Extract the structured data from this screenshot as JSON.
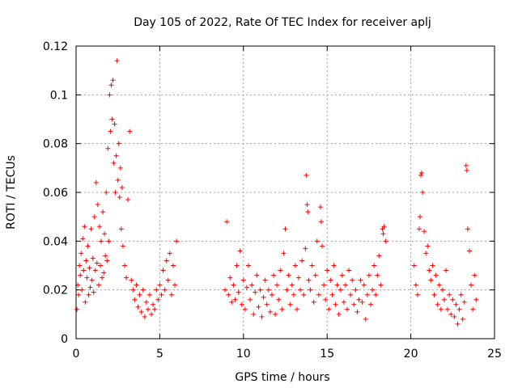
{
  "chart_data": {
    "type": "scatter",
    "title": "Day 105 of 2022, Rate Of TEC Index for receiver aplj",
    "xlabel": "GPS time / hours",
    "ylabel": "ROTI / TECUs",
    "xlim": [
      0,
      25
    ],
    "ylim": [
      0,
      0.12
    ],
    "x_ticks": [
      0,
      5,
      10,
      15,
      20,
      25
    ],
    "y_ticks": [
      0,
      0.02,
      0.04,
      0.06,
      0.08,
      0.1,
      0.12
    ],
    "x_tick_labels": [
      "0",
      "5",
      "10",
      "15",
      "20",
      "25"
    ],
    "y_tick_labels": [
      "0",
      "0.02",
      "0.04",
      "0.06",
      "0.08",
      "0.1",
      "0.12"
    ],
    "grid": true,
    "marker": "+",
    "color": "#ff0000",
    "series": [
      {
        "name": "ROTI",
        "points": [
          [
            0.05,
            0.012
          ],
          [
            0.1,
            0.022
          ],
          [
            0.15,
            0.018
          ],
          [
            0.2,
            0.03
          ],
          [
            0.25,
            0.026
          ],
          [
            0.3,
            0.035
          ],
          [
            0.35,
            0.02
          ],
          [
            0.4,
            0.041
          ],
          [
            0.45,
            0.028
          ],
          [
            0.5,
            0.046
          ],
          [
            0.55,
            0.015
          ],
          [
            0.6,
            0.032
          ],
          [
            0.65,
            0.025
          ],
          [
            0.7,
            0.038
          ],
          [
            0.75,
            0.018
          ],
          [
            0.8,
            0.029
          ],
          [
            0.85,
            0.021
          ],
          [
            0.9,
            0.045
          ],
          [
            0.95,
            0.024
          ],
          [
            1.0,
            0.033
          ],
          [
            1.05,
            0.019
          ],
          [
            1.1,
            0.05
          ],
          [
            1.15,
            0.028
          ],
          [
            1.2,
            0.064
          ],
          [
            1.25,
            0.031
          ],
          [
            1.3,
            0.055
          ],
          [
            1.35,
            0.022
          ],
          [
            1.4,
            0.046
          ],
          [
            1.45,
            0.03
          ],
          [
            1.5,
            0.04
          ],
          [
            1.55,
            0.025
          ],
          [
            1.6,
            0.052
          ],
          [
            1.65,
            0.027
          ],
          [
            1.7,
            0.043
          ],
          [
            1.75,
            0.034
          ],
          [
            1.8,
            0.06
          ],
          [
            1.85,
            0.032
          ],
          [
            1.9,
            0.078
          ],
          [
            1.95,
            0.04
          ],
          [
            2.0,
            0.1
          ],
          [
            2.05,
            0.085
          ],
          [
            2.1,
            0.104
          ],
          [
            2.15,
            0.09
          ],
          [
            2.2,
            0.106
          ],
          [
            2.25,
            0.072
          ],
          [
            2.3,
            0.088
          ],
          [
            2.35,
            0.06
          ],
          [
            2.4,
            0.075
          ],
          [
            2.45,
            0.114
          ],
          [
            2.5,
            0.065
          ],
          [
            2.55,
            0.08
          ],
          [
            2.6,
            0.058
          ],
          [
            2.65,
            0.07
          ],
          [
            2.7,
            0.045
          ],
          [
            2.75,
            0.062
          ],
          [
            2.8,
            0.038
          ],
          [
            2.9,
            0.03
          ],
          [
            3.0,
            0.025
          ],
          [
            3.1,
            0.057
          ],
          [
            3.2,
            0.085
          ],
          [
            3.3,
            0.024
          ],
          [
            3.4,
            0.02
          ],
          [
            3.5,
            0.016
          ],
          [
            3.6,
            0.022
          ],
          [
            3.7,
            0.013
          ],
          [
            3.8,
            0.018
          ],
          [
            3.9,
            0.011
          ],
          [
            4.0,
            0.02
          ],
          [
            4.1,
            0.009
          ],
          [
            4.2,
            0.015
          ],
          [
            4.3,
            0.012
          ],
          [
            4.4,
            0.018
          ],
          [
            4.5,
            0.01
          ],
          [
            4.6,
            0.014
          ],
          [
            4.7,
            0.012
          ],
          [
            4.8,
            0.02
          ],
          [
            4.9,
            0.016
          ],
          [
            5.0,
            0.022
          ],
          [
            5.1,
            0.018
          ],
          [
            5.2,
            0.028
          ],
          [
            5.3,
            0.02
          ],
          [
            5.4,
            0.032
          ],
          [
            5.5,
            0.024
          ],
          [
            5.6,
            0.035
          ],
          [
            5.7,
            0.018
          ],
          [
            5.8,
            0.03
          ],
          [
            5.9,
            0.022
          ],
          [
            6.0,
            0.04
          ],
          [
            8.9,
            0.02
          ],
          [
            9.0,
            0.048
          ],
          [
            9.1,
            0.018
          ],
          [
            9.2,
            0.025
          ],
          [
            9.3,
            0.015
          ],
          [
            9.4,
            0.022
          ],
          [
            9.5,
            0.016
          ],
          [
            9.6,
            0.03
          ],
          [
            9.7,
            0.019
          ],
          [
            9.8,
            0.036
          ],
          [
            9.9,
            0.014
          ],
          [
            10.0,
            0.024
          ],
          [
            10.1,
            0.012
          ],
          [
            10.2,
            0.021
          ],
          [
            10.3,
            0.03
          ],
          [
            10.4,
            0.016
          ],
          [
            10.5,
            0.022
          ],
          [
            10.6,
            0.01
          ],
          [
            10.7,
            0.019
          ],
          [
            10.8,
            0.026
          ],
          [
            10.9,
            0.013
          ],
          [
            11.0,
            0.02
          ],
          [
            11.1,
            0.009
          ],
          [
            11.2,
            0.017
          ],
          [
            11.3,
            0.024
          ],
          [
            11.4,
            0.014
          ],
          [
            11.5,
            0.02
          ],
          [
            11.6,
            0.011
          ],
          [
            11.7,
            0.018
          ],
          [
            11.8,
            0.026
          ],
          [
            11.9,
            0.01
          ],
          [
            12.0,
            0.022
          ],
          [
            12.1,
            0.016
          ],
          [
            12.2,
            0.028
          ],
          [
            12.3,
            0.012
          ],
          [
            12.4,
            0.035
          ],
          [
            12.5,
            0.045
          ],
          [
            12.6,
            0.02
          ],
          [
            12.7,
            0.026
          ],
          [
            12.8,
            0.014
          ],
          [
            12.9,
            0.022
          ],
          [
            13.0,
            0.018
          ],
          [
            13.1,
            0.03
          ],
          [
            13.2,
            0.012
          ],
          [
            13.3,
            0.025
          ],
          [
            13.4,
            0.02
          ],
          [
            13.5,
            0.032
          ],
          [
            13.6,
            0.018
          ],
          [
            13.7,
            0.037
          ],
          [
            13.75,
            0.067
          ],
          [
            13.8,
            0.055
          ],
          [
            13.85,
            0.052
          ],
          [
            13.9,
            0.024
          ],
          [
            14.0,
            0.02
          ],
          [
            14.1,
            0.03
          ],
          [
            14.2,
            0.015
          ],
          [
            14.3,
            0.026
          ],
          [
            14.4,
            0.04
          ],
          [
            14.5,
            0.018
          ],
          [
            14.6,
            0.054
          ],
          [
            14.65,
            0.048
          ],
          [
            14.7,
            0.038
          ],
          [
            14.8,
            0.022
          ],
          [
            14.9,
            0.016
          ],
          [
            15.0,
            0.028
          ],
          [
            15.1,
            0.012
          ],
          [
            15.2,
            0.024
          ],
          [
            15.3,
            0.018
          ],
          [
            15.4,
            0.03
          ],
          [
            15.5,
            0.014
          ],
          [
            15.6,
            0.022
          ],
          [
            15.7,
            0.01
          ],
          [
            15.8,
            0.02
          ],
          [
            15.9,
            0.026
          ],
          [
            16.0,
            0.015
          ],
          [
            16.1,
            0.022
          ],
          [
            16.2,
            0.012
          ],
          [
            16.3,
            0.028
          ],
          [
            16.4,
            0.018
          ],
          [
            16.5,
            0.024
          ],
          [
            16.6,
            0.014
          ],
          [
            16.7,
            0.02
          ],
          [
            16.8,
            0.011
          ],
          [
            16.9,
            0.016
          ],
          [
            17.0,
            0.024
          ],
          [
            17.1,
            0.015
          ],
          [
            17.2,
            0.022
          ],
          [
            17.3,
            0.008
          ],
          [
            17.4,
            0.018
          ],
          [
            17.5,
            0.026
          ],
          [
            17.6,
            0.014
          ],
          [
            17.7,
            0.02
          ],
          [
            17.8,
            0.03
          ],
          [
            17.9,
            0.018
          ],
          [
            18.0,
            0.026
          ],
          [
            18.1,
            0.034
          ],
          [
            18.2,
            0.022
          ],
          [
            18.3,
            0.045
          ],
          [
            18.35,
            0.043
          ],
          [
            18.4,
            0.046
          ],
          [
            18.5,
            0.04
          ],
          [
            20.2,
            0.03
          ],
          [
            20.3,
            0.022
          ],
          [
            20.4,
            0.018
          ],
          [
            20.5,
            0.045
          ],
          [
            20.55,
            0.05
          ],
          [
            20.6,
            0.067
          ],
          [
            20.65,
            0.068
          ],
          [
            20.7,
            0.06
          ],
          [
            20.8,
            0.044
          ],
          [
            20.9,
            0.035
          ],
          [
            21.0,
            0.038
          ],
          [
            21.1,
            0.028
          ],
          [
            21.2,
            0.024
          ],
          [
            21.3,
            0.03
          ],
          [
            21.4,
            0.018
          ],
          [
            21.5,
            0.026
          ],
          [
            21.6,
            0.014
          ],
          [
            21.7,
            0.022
          ],
          [
            21.8,
            0.012
          ],
          [
            21.9,
            0.02
          ],
          [
            22.0,
            0.016
          ],
          [
            22.1,
            0.028
          ],
          [
            22.2,
            0.012
          ],
          [
            22.3,
            0.018
          ],
          [
            22.4,
            0.01
          ],
          [
            22.5,
            0.016
          ],
          [
            22.6,
            0.009
          ],
          [
            22.7,
            0.014
          ],
          [
            22.8,
            0.006
          ],
          [
            22.9,
            0.012
          ],
          [
            23.0,
            0.018
          ],
          [
            23.1,
            0.008
          ],
          [
            23.2,
            0.015
          ],
          [
            23.3,
            0.071
          ],
          [
            23.35,
            0.069
          ],
          [
            23.4,
            0.045
          ],
          [
            23.5,
            0.036
          ],
          [
            23.6,
            0.022
          ],
          [
            23.7,
            0.012
          ],
          [
            23.8,
            0.026
          ],
          [
            23.9,
            0.016
          ]
        ]
      }
    ]
  }
}
